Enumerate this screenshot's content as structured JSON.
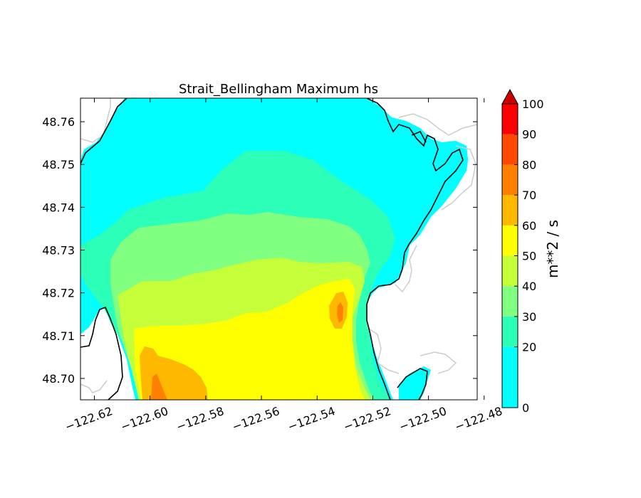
{
  "chart_data": {
    "type": "heatmap",
    "title": "Strait_Bellingham Maximum hs",
    "xlabel": "",
    "ylabel": "",
    "xlim": [
      -122.625,
      -122.4825
    ],
    "ylim": [
      48.695,
      48.7655
    ],
    "x_ticks": [
      -122.62,
      -122.6,
      -122.58,
      -122.56,
      -122.54,
      -122.52,
      -122.5,
      -122.48
    ],
    "x_tick_labels": [
      "−122.62",
      "−122.60",
      "−122.58",
      "−122.56",
      "−122.54",
      "−122.52",
      "−122.50",
      "−122.48"
    ],
    "y_ticks": [
      48.7,
      48.71,
      48.72,
      48.73,
      48.74,
      48.75,
      48.76
    ],
    "y_tick_labels": [
      "48.70",
      "48.71",
      "48.72",
      "48.73",
      "48.74",
      "48.75",
      "48.76"
    ],
    "grid": false,
    "colorbar": {
      "label": "m**2 / s",
      "levels": [
        0,
        20,
        30,
        40,
        50,
        60,
        70,
        80,
        90,
        100
      ],
      "tick_labels": [
        "0",
        "20",
        "30",
        "40",
        "50",
        "60",
        "70",
        "80",
        "90",
        "100"
      ],
      "colors": [
        "#00ffff",
        "#2bffb8",
        "#80ff80",
        "#c4ff3a",
        "#ffff00",
        "#ffb800",
        "#ff8000",
        "#ff4800",
        "#ff0000"
      ],
      "extend": "max",
      "extend_color": "#cc0000"
    },
    "contour_bands": [
      {
        "level_min": 0,
        "level_max": 20,
        "color": "#00ffff"
      },
      {
        "level_min": 20,
        "level_max": 30,
        "color": "#2bffb8"
      },
      {
        "level_min": 30,
        "level_max": 40,
        "color": "#80ff80"
      },
      {
        "level_min": 40,
        "level_max": 50,
        "color": "#c4ff3a"
      },
      {
        "level_min": 50,
        "level_max": 60,
        "color": "#ffff00"
      },
      {
        "level_min": 60,
        "level_max": 70,
        "color": "#ffb800"
      },
      {
        "level_min": 70,
        "level_max": 80,
        "color": "#ff8000"
      }
    ],
    "coastline_color": "#000000",
    "land_outline_color": "#cccccc"
  }
}
